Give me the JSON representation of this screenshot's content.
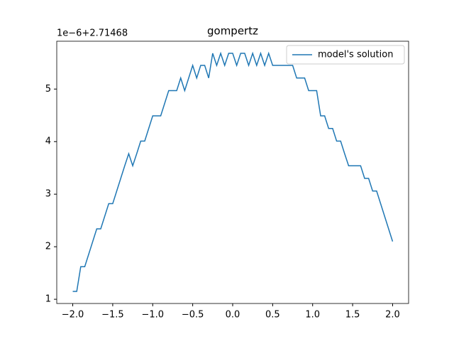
{
  "chart_data": {
    "type": "line",
    "title": "gompertz",
    "y_offset_label": "1e−6+2.71468",
    "x": [
      -2.0,
      -1.95,
      -1.9,
      -1.85,
      -1.8,
      -1.75,
      -1.7,
      -1.65,
      -1.6,
      -1.55,
      -1.5,
      -1.45,
      -1.4,
      -1.35,
      -1.3,
      -1.25,
      -1.2,
      -1.15,
      -1.1,
      -1.05,
      -1.0,
      -0.95,
      -0.9,
      -0.85,
      -0.8,
      -0.75,
      -0.7,
      -0.65,
      -0.6,
      -0.55,
      -0.5,
      -0.45,
      -0.4,
      -0.35,
      -0.3,
      -0.25,
      -0.2,
      -0.15,
      -0.1,
      -0.05,
      0.0,
      0.05,
      0.1,
      0.15,
      0.2,
      0.25,
      0.3,
      0.35,
      0.4,
      0.45,
      0.5,
      0.55,
      0.6,
      0.65,
      0.7,
      0.75,
      0.8,
      0.85,
      0.9,
      0.95,
      1.0,
      1.05,
      1.1,
      1.15,
      1.2,
      1.25,
      1.3,
      1.35,
      1.4,
      1.45,
      1.5,
      1.55,
      1.6,
      1.65,
      1.7,
      1.75,
      1.8,
      1.85,
      1.9,
      1.95,
      2.0
    ],
    "series": [
      {
        "name": "model's solution",
        "color": "#1f77b4",
        "values": [
          1.15,
          1.15,
          1.62,
          1.62,
          1.86,
          2.1,
          2.34,
          2.34,
          2.58,
          2.82,
          2.82,
          3.06,
          3.3,
          3.54,
          3.77,
          3.54,
          3.77,
          4.01,
          4.01,
          4.25,
          4.49,
          4.49,
          4.49,
          4.73,
          4.97,
          4.97,
          4.97,
          5.21,
          4.97,
          5.21,
          5.45,
          5.21,
          5.45,
          5.45,
          5.21,
          5.68,
          5.45,
          5.68,
          5.45,
          5.68,
          5.68,
          5.45,
          5.68,
          5.68,
          5.45,
          5.68,
          5.45,
          5.68,
          5.45,
          5.68,
          5.45,
          5.45,
          5.45,
          5.45,
          5.45,
          5.45,
          5.21,
          5.21,
          5.21,
          4.97,
          4.97,
          4.97,
          4.49,
          4.49,
          4.25,
          4.25,
          4.01,
          4.01,
          3.77,
          3.54,
          3.54,
          3.54,
          3.54,
          3.3,
          3.3,
          3.06,
          3.06,
          2.82,
          2.58,
          2.34,
          2.1
        ]
      }
    ],
    "xlim": [
      -2.2,
      2.2
    ],
    "ylim": [
      0.92,
      5.91
    ],
    "xticks": [
      {
        "value": -2.0,
        "label": "−2.0"
      },
      {
        "value": -1.5,
        "label": "−1.5"
      },
      {
        "value": -1.0,
        "label": "−1.0"
      },
      {
        "value": -0.5,
        "label": "−0.5"
      },
      {
        "value": 0,
        "label": "0.0"
      },
      0.5,
      {
        "value": 1,
        "label": "1.0"
      },
      1.5,
      {
        "value": 2,
        "label": "2.0"
      }
    ],
    "yticks": [
      1,
      2,
      3,
      4,
      5
    ],
    "legend": "upper right"
  }
}
